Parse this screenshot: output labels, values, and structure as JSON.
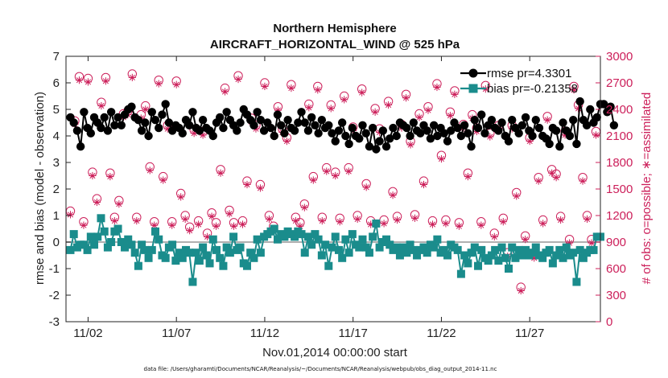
{
  "chart_data": {
    "type": "line",
    "title": "Northern Hemisphere",
    "subtitle": "AIRCRAFT_HORIZONTAL_WIND @ 525 hPa",
    "xlabel": "Nov.01,2014 00:00:00 start",
    "ylabel": "rmse and bias (model - observation)",
    "y2label": "# of obs: o=possible; ∗=assimilated",
    "footnote": "data file: /Users/gharamti/Documents/NCAR/Reanalysis/~/Documents/NCAR/Reanalysis/webpub/obs_diag_output_2014-11.nc",
    "x_ticks": [
      "11/02",
      "11/07",
      "11/12",
      "11/17",
      "11/22",
      "11/27"
    ],
    "x_tick_days": [
      2,
      7,
      12,
      17,
      22,
      27
    ],
    "xlim": [
      0.75,
      31
    ],
    "ylim": [
      -3,
      7
    ],
    "y_ticks": [
      "-3",
      "-2",
      "-1",
      "0",
      "1",
      "2",
      "3",
      "4",
      "5",
      "6",
      "7"
    ],
    "y2lim": [
      0,
      3000
    ],
    "y2_ticks": [
      "0",
      "300",
      "600",
      "900",
      "1200",
      "1500",
      "1800",
      "2100",
      "2400",
      "2700",
      "3000"
    ],
    "legend": {
      "location": "top-right",
      "entries": [
        "rmse pr=4.3301",
        "bias pr=-0.21358"
      ]
    },
    "colors": {
      "rmse": "#000000",
      "bias": "#1a8c8c",
      "obs": "#cc1f5a",
      "zero_line": "#b0b0b0"
    },
    "series": [
      {
        "name": "rmse",
        "values": [
          4.7,
          4.5,
          4.2,
          3.6,
          4.9,
          4.3,
          4.1,
          4.7,
          4.5,
          4.3,
          4.7,
          4.2,
          4.9,
          4.4,
          4.7,
          4.4,
          4.8,
          5.0,
          5.1,
          4.7,
          4.6,
          4.2,
          4.5,
          4.0,
          4.9,
          4.6,
          4.3,
          4.8,
          5.2,
          4.5,
          4.2,
          4.4,
          4.3,
          4.1,
          4.6,
          4.4,
          4.9,
          4.3,
          4.2,
          4.6,
          4.3,
          4.2,
          4.0,
          4.5,
          4.7,
          4.3,
          4.9,
          4.6,
          4.4,
          4.2,
          4.5,
          5.0,
          4.8,
          4.6,
          4.4,
          4.9,
          4.6,
          4.2,
          4.5,
          4.3,
          4.0,
          4.8,
          4.4,
          4.1,
          4.6,
          4.3,
          4.2,
          4.5,
          4.9,
          4.5,
          4.2,
          4.7,
          4.4,
          4.1,
          4.6,
          4.3,
          4.4,
          4.1,
          3.8,
          4.2,
          4.5,
          4.0,
          3.7,
          4.3,
          4.0,
          3.9,
          4.4,
          4.1,
          3.6,
          4.3,
          3.5,
          3.8,
          4.2,
          3.6,
          3.9,
          4.3,
          4.0,
          4.5,
          4.4,
          4.3,
          4.0,
          4.5,
          4.2,
          4.1,
          4.4,
          4.2,
          3.9,
          4.4,
          4.0,
          4.3,
          4.1,
          3.8,
          4.2,
          4.5,
          4.3,
          4.0,
          4.4,
          4.1,
          3.6,
          4.6,
          4.3,
          4.8,
          4.1,
          4.4,
          4.6,
          4.3,
          4.2,
          4.5,
          4.0,
          3.8,
          4.6,
          4.3,
          4.1,
          4.4,
          4.7,
          4.2,
          4.0,
          4.6,
          4.3,
          4.0,
          3.9,
          3.7,
          4.3,
          4.2,
          3.6,
          4.5,
          4.2,
          4.0,
          4.6,
          3.7,
          5.3,
          4.6,
          4.4,
          5.0,
          4.5,
          4.7,
          5.2,
          5.2,
          4.9,
          5.1,
          4.4
        ],
        "x_start": 1.0,
        "x_step": 0.1923
      },
      {
        "name": "bias",
        "values": [
          -0.3,
          0.3,
          -0.2,
          -0.1,
          -0.1,
          -0.3,
          0.2,
          -0.1,
          0.2,
          0.9,
          0.4,
          -0.2,
          0.0,
          0.4,
          0.5,
          0.0,
          -0.2,
          0.1,
          -0.1,
          -0.4,
          -0.9,
          -0.1,
          -0.3,
          -0.6,
          -0.3,
          0.4,
          0.1,
          -0.5,
          -0.6,
          -0.2,
          -0.1,
          -0.7,
          -0.4,
          -0.6,
          -0.3,
          -0.4,
          -1.5,
          -0.4,
          -0.7,
          -0.2,
          -0.5,
          -0.8,
          0.1,
          -0.3,
          -0.6,
          -0.9,
          -0.2,
          -0.4,
          0.2,
          -0.3,
          -0.2,
          -0.8,
          -0.9,
          -0.4,
          -0.6,
          0.1,
          -0.4,
          0.2,
          0.3,
          0.4,
          0.5,
          0.1,
          0.3,
          0.2,
          0.4,
          0.3,
          0.2,
          0.4,
          0.3,
          -0.4,
          0.2,
          -0.1,
          0.3,
          0.1,
          -0.5,
          -0.1,
          -0.9,
          -0.2,
          0.2,
          -0.3,
          -0.6,
          0.1,
          -0.4,
          0.3,
          -0.1,
          -0.2,
          0.1,
          -0.2,
          -0.4,
          0.2,
          0.7,
          -0.2,
          0.0,
          0.1,
          -0.1,
          -0.3,
          -0.2,
          -0.5,
          -0.2,
          -0.4,
          -0.1,
          -0.3,
          -0.5,
          -0.3,
          -0.2,
          -0.4,
          -0.1,
          -0.2,
          0.1,
          -0.4,
          -0.3,
          -0.5,
          -0.1,
          -0.2,
          -0.3,
          -1.2,
          -0.5,
          -0.8,
          -0.4,
          -0.2,
          -0.9,
          -0.3,
          -0.6,
          -0.7,
          -0.5,
          -0.3,
          -0.7,
          -0.2,
          -0.6,
          -1.0,
          -0.2,
          -0.6,
          -0.3,
          -0.5,
          -0.3,
          -0.5,
          -0.4,
          -0.2,
          -0.5,
          -0.6,
          -0.4,
          -0.3,
          -0.8,
          -0.5,
          -0.3,
          -0.6,
          -0.2,
          -0.5,
          -0.4,
          -1.5,
          -0.3,
          -0.6,
          -0.4,
          -0.3,
          -0.3,
          0.2,
          0.2
        ],
        "x_start": 1.0,
        "x_step": 0.1923
      }
    ],
    "obs_possible": {
      "x": [
        1.0,
        1.25,
        1.5,
        1.75,
        2.0,
        2.25,
        2.5,
        2.75,
        3.0,
        3.25,
        3.5,
        3.75,
        4.0,
        4.25,
        4.5,
        4.75,
        5.0,
        5.25,
        5.5,
        5.75,
        6.0,
        6.25,
        6.5,
        6.75,
        7.0,
        7.25,
        7.5,
        7.75,
        8.0,
        8.25,
        8.5,
        8.75,
        9.0,
        9.25,
        9.5,
        9.75,
        10.0,
        10.25,
        10.5,
        10.75,
        11.0,
        11.25,
        11.5,
        11.75,
        12.0,
        12.25,
        12.5,
        12.75,
        13.0,
        13.25,
        13.5,
        13.75,
        14.0,
        14.25,
        14.5,
        14.75,
        15.0,
        15.25,
        15.5,
        15.75,
        16.0,
        16.25,
        16.5,
        16.75,
        17.0,
        17.25,
        17.5,
        17.75,
        18.0,
        18.25,
        18.5,
        18.75,
        19.0,
        19.25,
        19.5,
        19.75,
        20.0,
        20.25,
        20.5,
        20.75,
        21.0,
        21.25,
        21.5,
        21.75,
        22.0,
        22.25,
        22.5,
        22.75,
        23.0,
        23.25,
        23.5,
        23.75,
        24.0,
        24.25,
        24.5,
        24.75,
        25.0,
        25.25,
        25.5,
        25.75,
        26.0,
        26.25,
        26.5,
        26.75,
        27.0,
        27.25,
        27.5,
        27.75,
        28.0,
        28.25,
        28.5,
        28.75,
        29.0,
        29.25,
        29.5,
        29.75,
        30.0,
        30.25,
        30.5,
        30.75
      ],
      "y": [
        1250,
        2270,
        2770,
        1130,
        2750,
        1690,
        1390,
        2480,
        2760,
        1680,
        1180,
        1370,
        2350,
        2380,
        2800,
        1180,
        2340,
        2440,
        1750,
        1130,
        2730,
        1640,
        2220,
        1130,
        2720,
        1450,
        1200,
        1070,
        2170,
        1140,
        2150,
        1000,
        1230,
        1120,
        1720,
        2640,
        1260,
        1120,
        2780,
        1140,
        1590,
        2300,
        2220,
        1550,
        2700,
        1200,
        1080,
        2430,
        2180,
        2080,
        2680,
        1180,
        1120,
        1330,
        2460,
        1640,
        2660,
        1180,
        1740,
        2450,
        1690,
        1170,
        2550,
        1740,
        2200,
        1200,
        2630,
        1560,
        1140,
        2410,
        2180,
        1150,
        2490,
        1470,
        1190,
        2230,
        2570,
        2040,
        1210,
        2350,
        1590,
        2430,
        1140,
        2690,
        1880,
        1150,
        2370,
        2610,
        1120,
        2230,
        1680,
        2340,
        2190,
        1130,
        2670,
        2130,
        1000,
        2220,
        1170,
        780,
        2220,
        1460,
        390,
        970,
        2080,
        760,
        1630,
        1150,
        2320,
        1720,
        1670,
        1190,
        2150,
        930,
        2660,
        2450,
        1630,
        1200,
        930,
        2150
      ],
      "assimilated_offset": -40
    }
  }
}
